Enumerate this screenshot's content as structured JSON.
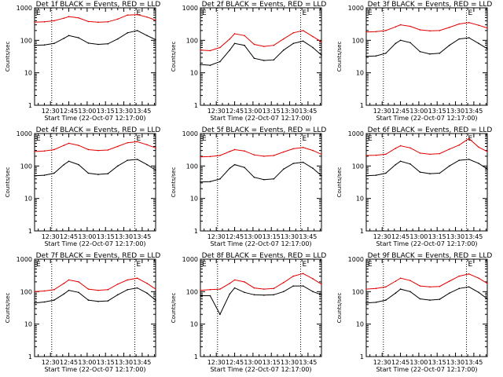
{
  "figure": {
    "background": "#ffffff",
    "axis_color": "#000000",
    "events_color": "#000000",
    "lld_color": "#e00000"
  },
  "chart_data": [
    {
      "type": "line",
      "title": "Det 1f BLACK = Events, RED = LLD",
      "xlabel": "Start Time (22-Oct-07 12:17:00)",
      "ylabel": "Counts/sec",
      "yscale": "log",
      "ylim": [
        1,
        1000
      ],
      "xlim": [
        "12:17",
        "13:56"
      ],
      "xticks": [
        "12:30",
        "12:45",
        "13:00",
        "13:15",
        "13:30",
        "13:45"
      ],
      "yticks": [
        "1",
        "10",
        "100",
        "1000"
      ],
      "vlines": [
        "12:31",
        "13:39"
      ],
      "corner_labels": [
        "E",
        "E"
      ],
      "x": [
        "12:17",
        "12:25",
        "12:33",
        "12:41",
        "12:45",
        "12:53",
        "13:01",
        "13:09",
        "13:17",
        "13:25",
        "13:33",
        "13:41",
        "13:49",
        "13:56"
      ],
      "series": [
        {
          "values": [
            70,
            72,
            80,
            115,
            140,
            120,
            82,
            75,
            78,
            110,
            170,
            200,
            140,
            105
          ]
        },
        {
          "values": [
            360,
            370,
            400,
            480,
            540,
            490,
            380,
            360,
            370,
            450,
            600,
            620,
            520,
            420
          ]
        }
      ]
    },
    {
      "type": "line",
      "title": "Det 2f BLACK = Events, RED = LLD",
      "xlabel": "Start Time (22-Oct-07 12:17:00)",
      "ylabel": "Counts/sec",
      "yscale": "log",
      "ylim": [
        1,
        1000
      ],
      "xlim": [
        "12:17",
        "13:56"
      ],
      "xticks": [
        "12:30",
        "12:45",
        "13:00",
        "13:15",
        "13:30",
        "13:45"
      ],
      "yticks": [
        "1",
        "10",
        "100",
        "1000"
      ],
      "vlines": [
        "12:31",
        "13:39"
      ],
      "corner_labels": [
        "E",
        "E"
      ],
      "x": [
        "12:17",
        "12:25",
        "12:33",
        "12:41",
        "12:45",
        "12:53",
        "13:01",
        "13:09",
        "13:17",
        "13:25",
        "13:33",
        "13:41",
        "13:49",
        "13:56"
      ],
      "series": [
        {
          "values": [
            18,
            17,
            22,
            50,
            80,
            70,
            28,
            24,
            25,
            50,
            80,
            95,
            60,
            35
          ]
        },
        {
          "values": [
            50,
            48,
            60,
            110,
            160,
            140,
            75,
            65,
            70,
            110,
            170,
            200,
            130,
            90
          ]
        }
      ]
    },
    {
      "type": "line",
      "title": "Det 3f BLACK = Events, RED = LLD",
      "xlabel": "Start Time (22-Oct-07 12:17:00)",
      "ylabel": "Counts/sec",
      "yscale": "log",
      "ylim": [
        1,
        1000
      ],
      "xlim": [
        "12:17",
        "13:56"
      ],
      "xticks": [
        "12:30",
        "12:45",
        "13:00",
        "13:15",
        "13:30",
        "13:45"
      ],
      "yticks": [
        "1",
        "10",
        "100",
        "1000"
      ],
      "vlines": [
        "12:31",
        "13:39"
      ],
      "corner_labels": [
        "E",
        "E"
      ],
      "x": [
        "12:17",
        "12:25",
        "12:33",
        "12:41",
        "12:45",
        "12:53",
        "13:01",
        "13:09",
        "13:17",
        "13:25",
        "13:33",
        "13:41",
        "13:49",
        "13:56"
      ],
      "series": [
        {
          "values": [
            32,
            33,
            40,
            80,
            100,
            85,
            45,
            38,
            40,
            70,
            110,
            120,
            80,
            55
          ]
        },
        {
          "values": [
            180,
            185,
            200,
            260,
            300,
            270,
            210,
            195,
            200,
            250,
            320,
            350,
            290,
            240
          ]
        }
      ]
    },
    {
      "type": "line",
      "title": "Det 4f BLACK = Events, RED = LLD",
      "xlabel": "Start Time (22-Oct-07 12:17:00)",
      "ylabel": "Counts/sec",
      "yscale": "log",
      "ylim": [
        1,
        1000
      ],
      "xlim": [
        "12:17",
        "13:56"
      ],
      "xticks": [
        "12:30",
        "12:45",
        "13:00",
        "13:15",
        "13:30",
        "13:45"
      ],
      "yticks": [
        "1",
        "10",
        "100",
        "1000"
      ],
      "vlines": [
        "12:31",
        "13:39"
      ],
      "corner_labels": [
        "E",
        "E"
      ],
      "x": [
        "12:17",
        "12:25",
        "12:33",
        "12:41",
        "12:45",
        "12:53",
        "13:01",
        "13:09",
        "13:17",
        "13:25",
        "13:33",
        "13:41",
        "13:49",
        "13:56"
      ],
      "series": [
        {
          "values": [
            50,
            52,
            60,
            110,
            140,
            110,
            60,
            55,
            58,
            100,
            150,
            160,
            110,
            75
          ]
        },
        {
          "values": [
            280,
            290,
            320,
            430,
            500,
            430,
            320,
            300,
            310,
            400,
            520,
            560,
            450,
            360
          ]
        }
      ]
    },
    {
      "type": "line",
      "title": "Det 5f BLACK = Events, RED = LLD",
      "xlabel": "Start Time (22-Oct-07 12:17:00)",
      "ylabel": "Counts/sec",
      "yscale": "log",
      "ylim": [
        1,
        1000
      ],
      "xlim": [
        "12:17",
        "13:56"
      ],
      "xticks": [
        "12:30",
        "12:45",
        "13:00",
        "13:15",
        "13:30",
        "13:45"
      ],
      "yticks": [
        "1",
        "10",
        "100",
        "1000"
      ],
      "vlines": [
        "12:31",
        "13:39"
      ],
      "corner_labels": [
        "E",
        "E"
      ],
      "x": [
        "12:17",
        "12:25",
        "12:33",
        "12:41",
        "12:45",
        "12:53",
        "13:01",
        "13:09",
        "13:17",
        "13:25",
        "13:33",
        "13:41",
        "13:49",
        "13:56"
      ],
      "series": [
        {
          "values": [
            32,
            33,
            40,
            85,
            110,
            90,
            45,
            38,
            40,
            80,
            120,
            130,
            85,
            50
          ]
        },
        {
          "values": [
            190,
            195,
            210,
            280,
            320,
            290,
            220,
            200,
            210,
            270,
            340,
            370,
            300,
            230
          ]
        }
      ]
    },
    {
      "type": "line",
      "title": "Det 6f BLACK = Events, RED = LLD",
      "xlabel": "Start Time (22-Oct-07 12:17:00)",
      "ylabel": "Counts/sec",
      "yscale": "log",
      "ylim": [
        1,
        1000
      ],
      "xlim": [
        "12:17",
        "13:56"
      ],
      "xticks": [
        "12:30",
        "12:45",
        "13:00",
        "13:15",
        "13:30",
        "13:45"
      ],
      "yticks": [
        "1",
        "10",
        "100",
        "1000"
      ],
      "vlines": [
        "12:31",
        "13:39"
      ],
      "corner_labels": [
        "E",
        "E"
      ],
      "x": [
        "12:17",
        "12:25",
        "12:33",
        "12:41",
        "12:45",
        "12:53",
        "13:01",
        "13:09",
        "13:17",
        "13:25",
        "13:33",
        "13:41",
        "13:49",
        "13:56"
      ],
      "series": [
        {
          "values": [
            50,
            52,
            60,
            110,
            140,
            115,
            65,
            58,
            60,
            100,
            150,
            160,
            120,
            80
          ]
        },
        {
          "values": [
            210,
            215,
            230,
            350,
            420,
            360,
            250,
            230,
            240,
            330,
            440,
            700,
            380,
            280
          ]
        }
      ]
    },
    {
      "type": "line",
      "title": "Det 7f BLACK = Events, RED = LLD",
      "xlabel": "Start Time (22-Oct-07 12:17:00)",
      "ylabel": "Counts/sec",
      "yscale": "log",
      "ylim": [
        1,
        1000
      ],
      "xlim": [
        "12:17",
        "13:56"
      ],
      "xticks": [
        "12:30",
        "12:45",
        "13:00",
        "13:15",
        "13:30",
        "13:45"
      ],
      "yticks": [
        "1",
        "10",
        "100",
        "1000"
      ],
      "vlines": [
        "12:31",
        "13:39"
      ],
      "corner_labels": [
        "E",
        "E"
      ],
      "x": [
        "12:17",
        "12:25",
        "12:33",
        "12:41",
        "12:45",
        "12:53",
        "13:01",
        "13:09",
        "13:17",
        "13:25",
        "13:33",
        "13:41",
        "13:49",
        "13:56"
      ],
      "series": [
        {
          "values": [
            45,
            48,
            55,
            85,
            110,
            95,
            55,
            50,
            52,
            80,
            115,
            130,
            90,
            55
          ]
        },
        {
          "values": [
            100,
            105,
            115,
            180,
            230,
            200,
            120,
            110,
            115,
            170,
            230,
            260,
            180,
            120
          ]
        }
      ]
    },
    {
      "type": "line",
      "title": "Det 8f BLACK = Events, RED = LLD",
      "xlabel": "Start Time (22-Oct-07 12:17:00)",
      "ylabel": "Counts/sec",
      "yscale": "log",
      "ylim": [
        1,
        1000
      ],
      "xlim": [
        "12:17",
        "13:56"
      ],
      "xticks": [
        "12:30",
        "12:45",
        "13:00",
        "13:15",
        "13:30",
        "13:45"
      ],
      "yticks": [
        "1",
        "10",
        "100",
        "1000"
      ],
      "vlines": [
        "12:31",
        "13:39"
      ],
      "corner_labels": [
        "E",
        "E"
      ],
      "x": [
        "12:17",
        "12:25",
        "12:33",
        "12:41",
        "12:45",
        "12:53",
        "13:01",
        "13:09",
        "13:17",
        "13:25",
        "13:33",
        "13:41",
        "13:49",
        "13:56"
      ],
      "series": [
        {
          "values": [
            75,
            75,
            20,
            85,
            130,
            95,
            80,
            78,
            80,
            100,
            150,
            150,
            100,
            80
          ]
        },
        {
          "values": [
            110,
            115,
            120,
            180,
            230,
            200,
            130,
            120,
            125,
            190,
            300,
            360,
            250,
            170
          ]
        }
      ]
    },
    {
      "type": "line",
      "title": "Det 9f BLACK = Events, RED = LLD",
      "xlabel": "Start Time (22-Oct-07 12:17:00)",
      "ylabel": "Counts/sec",
      "yscale": "log",
      "ylim": [
        1,
        1000
      ],
      "xlim": [
        "12:17",
        "13:56"
      ],
      "xticks": [
        "12:30",
        "12:45",
        "13:00",
        "13:15",
        "13:30",
        "13:45"
      ],
      "yticks": [
        "1",
        "10",
        "100",
        "1000"
      ],
      "vlines": [
        "12:31",
        "13:39"
      ],
      "corner_labels": [
        "E",
        "E"
      ],
      "x": [
        "12:17",
        "12:25",
        "12:33",
        "12:41",
        "12:45",
        "12:53",
        "13:01",
        "13:09",
        "13:17",
        "13:25",
        "13:33",
        "13:41",
        "13:49",
        "13:56"
      ],
      "series": [
        {
          "values": [
            45,
            47,
            55,
            90,
            120,
            100,
            60,
            55,
            58,
            90,
            125,
            140,
            95,
            60
          ]
        },
        {
          "values": [
            120,
            125,
            140,
            210,
            260,
            220,
            150,
            140,
            145,
            210,
            300,
            350,
            260,
            180
          ]
        }
      ]
    }
  ]
}
